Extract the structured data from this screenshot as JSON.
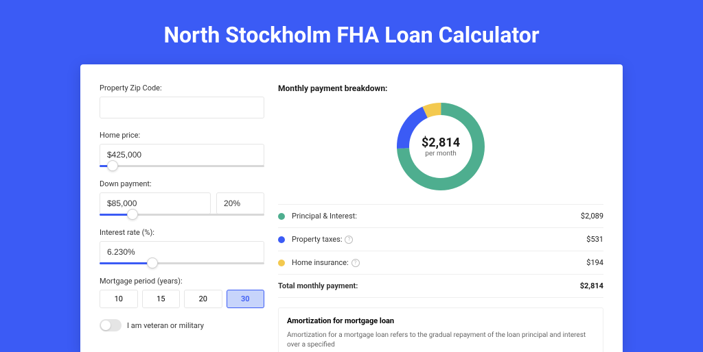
{
  "page": {
    "title": "North Stockholm FHA Loan Calculator",
    "background_color": "#3b5bf5",
    "card_background": "#ffffff"
  },
  "form": {
    "zip": {
      "label": "Property Zip Code:",
      "value": ""
    },
    "home_price": {
      "label": "Home price:",
      "value": "$425,000",
      "slider_pct": 8
    },
    "down_payment": {
      "label": "Down payment:",
      "amount": "$85,000",
      "pct": "20%",
      "slider_pct": 20
    },
    "interest": {
      "label": "Interest rate (%):",
      "value": "6.230%",
      "slider_pct": 32
    },
    "period": {
      "label": "Mortgage period (years):",
      "options": [
        "10",
        "15",
        "20",
        "30"
      ],
      "selected": "30"
    },
    "veteran": {
      "label": "I am veteran or military",
      "checked": false
    }
  },
  "breakdown": {
    "title": "Monthly payment breakdown:",
    "donut": {
      "amount": "$2,814",
      "sub": "per month",
      "slices": [
        {
          "name": "principal_interest",
          "color": "#4eae8f",
          "pct": 74.2
        },
        {
          "name": "property_taxes",
          "color": "#3b5bf5",
          "pct": 18.9
        },
        {
          "name": "home_insurance",
          "color": "#f3c94f",
          "pct": 6.9
        }
      ],
      "stroke_width": 18,
      "radius": 55,
      "background": "#ffffff"
    },
    "items": [
      {
        "label": "Principal & Interest:",
        "value": "$2,089",
        "color": "#4eae8f",
        "help": false
      },
      {
        "label": "Property taxes:",
        "value": "$531",
        "color": "#3b5bf5",
        "help": true
      },
      {
        "label": "Home insurance:",
        "value": "$194",
        "color": "#f3c94f",
        "help": true
      }
    ],
    "total": {
      "label": "Total monthly payment:",
      "value": "$2,814"
    }
  },
  "amortization": {
    "title": "Amortization for mortgage loan",
    "text": "Amortization for a mortgage loan refers to the gradual repayment of the loan principal and interest over a specified"
  },
  "colors": {
    "accent": "#3b5bf5",
    "text_primary": "#1a1a1a",
    "text_secondary": "#666666",
    "border": "#e5e5e5"
  }
}
